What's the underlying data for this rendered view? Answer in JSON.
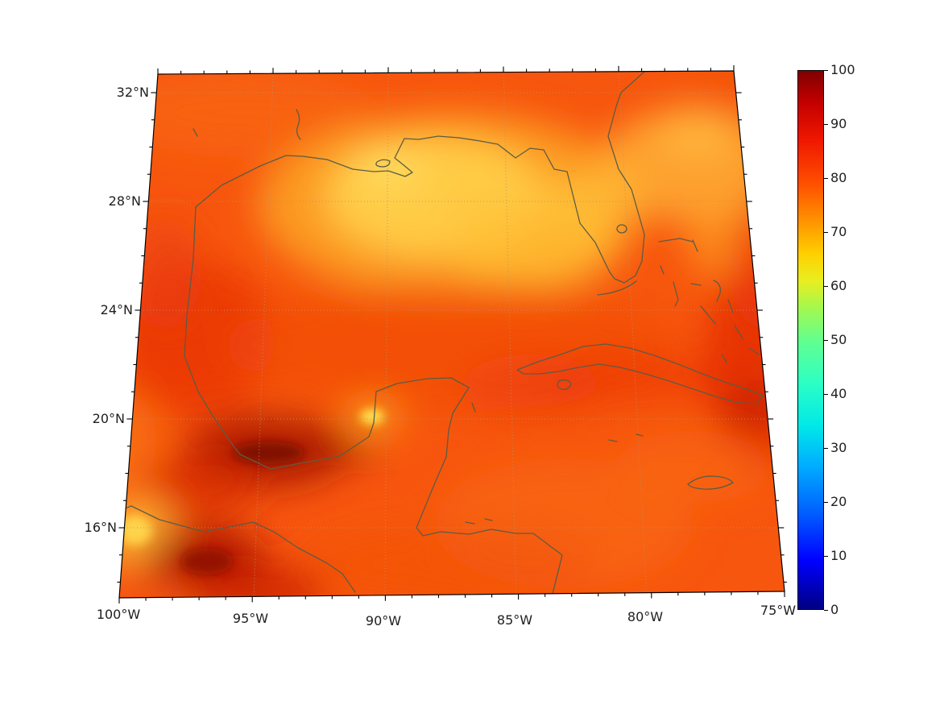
{
  "figure": {
    "background": "#ffffff",
    "title": ""
  },
  "chart_data": {
    "type": "heatmap",
    "title": "",
    "description": "Geographic heatmap (0-100 scalar field, jet colormap) over the Gulf of Mexico, Caribbean and southeastern North America with coastlines and dotted lat/lon graticule.",
    "x_axis": {
      "label": "",
      "ticks": [
        "100°W",
        "95°W",
        "90°W",
        "85°W",
        "80°W",
        "75°W"
      ]
    },
    "y_axis": {
      "label": "",
      "ticks": [
        "32°N",
        "28°N",
        "24°N",
        "20°N",
        "16°N"
      ]
    },
    "colorbar": {
      "min": 0,
      "max": 100,
      "ticks": [
        "100",
        "90",
        "80",
        "70",
        "60",
        "50",
        "40",
        "30",
        "20",
        "10",
        "0"
      ],
      "gradient_stops": [
        {
          "value": 0,
          "color": "#000083"
        },
        {
          "value": 9,
          "color": "#0000ff"
        },
        {
          "value": 18,
          "color": "#0060ff"
        },
        {
          "value": 27,
          "color": "#00b0ff"
        },
        {
          "value": 34,
          "color": "#00e8e8"
        },
        {
          "value": 42,
          "color": "#2cffc4"
        },
        {
          "value": 50,
          "color": "#64ff8e"
        },
        {
          "value": 56,
          "color": "#a4f84e"
        },
        {
          "value": 61,
          "color": "#e8ee20"
        },
        {
          "value": 66,
          "color": "#ffd000"
        },
        {
          "value": 72,
          "color": "#ff9400"
        },
        {
          "value": 79,
          "color": "#ff5000"
        },
        {
          "value": 87,
          "color": "#f01800"
        },
        {
          "value": 94,
          "color": "#c40000"
        },
        {
          "value": 100,
          "color": "#800000"
        }
      ]
    },
    "field_summary": "Field values roughly 55-95: broad orange-red background (~75-82); yellow minima (~60-65) over the central/NE Gulf of Mexico, east of Florida and at the Bay of Campeche coast; dark-red maxima (~90-100) over southern Mexico, the southwest corner and along the eastern edge.",
    "sampled_values": [
      {
        "lon": "-88",
        "lat": "26.5",
        "value": 63
      },
      {
        "lon": "-90",
        "lat": "30",
        "value": 72
      },
      {
        "lon": "-95",
        "lat": "27",
        "value": 80
      },
      {
        "lon": "-94",
        "lat": "19.3",
        "value": 95
      },
      {
        "lon": "-90.3",
        "lat": "19.8",
        "value": 60
      },
      {
        "lon": "-99",
        "lat": "16.5",
        "value": 88
      },
      {
        "lon": "-76",
        "lat": "21.5",
        "value": 87
      },
      {
        "lon": "-78",
        "lat": "27",
        "value": 68
      },
      {
        "lon": "-81",
        "lat": "18",
        "value": 76
      }
    ],
    "coastline_color": "#5c5c44",
    "gridline_color": "#a89878",
    "frame_color": "#000000"
  }
}
